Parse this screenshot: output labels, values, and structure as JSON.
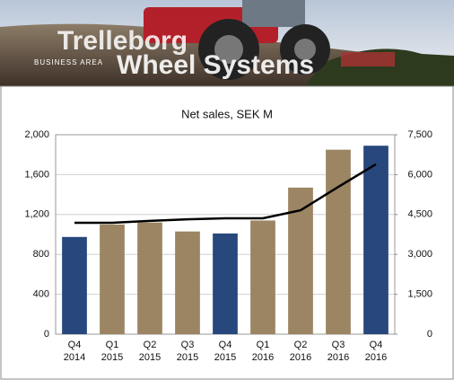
{
  "header": {
    "brand": "Trelleborg",
    "business_area": "BUSINESS AREA",
    "division": "Wheel Systems"
  },
  "chart_data": {
    "type": "combo",
    "title": "Net sales, SEK M",
    "categories": [
      [
        "Q4",
        "2014"
      ],
      [
        "Q1",
        "2015"
      ],
      [
        "Q2",
        "2015"
      ],
      [
        "Q3",
        "2015"
      ],
      [
        "Q4",
        "2015"
      ],
      [
        "Q1",
        "2016"
      ],
      [
        "Q2",
        "2016"
      ],
      [
        "Q3",
        "2016"
      ],
      [
        "Q4",
        "2016"
      ]
    ],
    "series": [
      {
        "type": "bar",
        "colors": [
          "#27477d",
          "#9b8562",
          "#9b8562",
          "#9b8562",
          "#27477d",
          "#9b8562",
          "#9b8562",
          "#9b8562",
          "#27477d"
        ],
        "values": [
          975,
          1100,
          1120,
          1030,
          1010,
          1140,
          1470,
          1850,
          1890
        ]
      },
      {
        "type": "line",
        "axis": "y2",
        "color": "#000000",
        "values": [
          4190,
          4190,
          4260,
          4320,
          4360,
          4360,
          4660,
          5540,
          6390
        ]
      }
    ],
    "ylim": [
      0,
      2000
    ],
    "yticks": [
      0,
      400,
      800,
      {
        "value": 1200,
        "label": "1,200"
      },
      {
        "value": 1600,
        "label": "1,600"
      },
      {
        "value": 2000,
        "label": "2,000"
      }
    ],
    "y2lim": [
      0,
      7500
    ],
    "y2ticks": [
      0,
      {
        "value": 1500,
        "label": "1,500"
      },
      {
        "value": 3000,
        "label": "3,000"
      },
      {
        "value": 4500,
        "label": "4,500"
      },
      {
        "value": 6000,
        "label": "6,000"
      },
      {
        "value": 7500,
        "label": "7,500"
      }
    ],
    "grid": true
  }
}
